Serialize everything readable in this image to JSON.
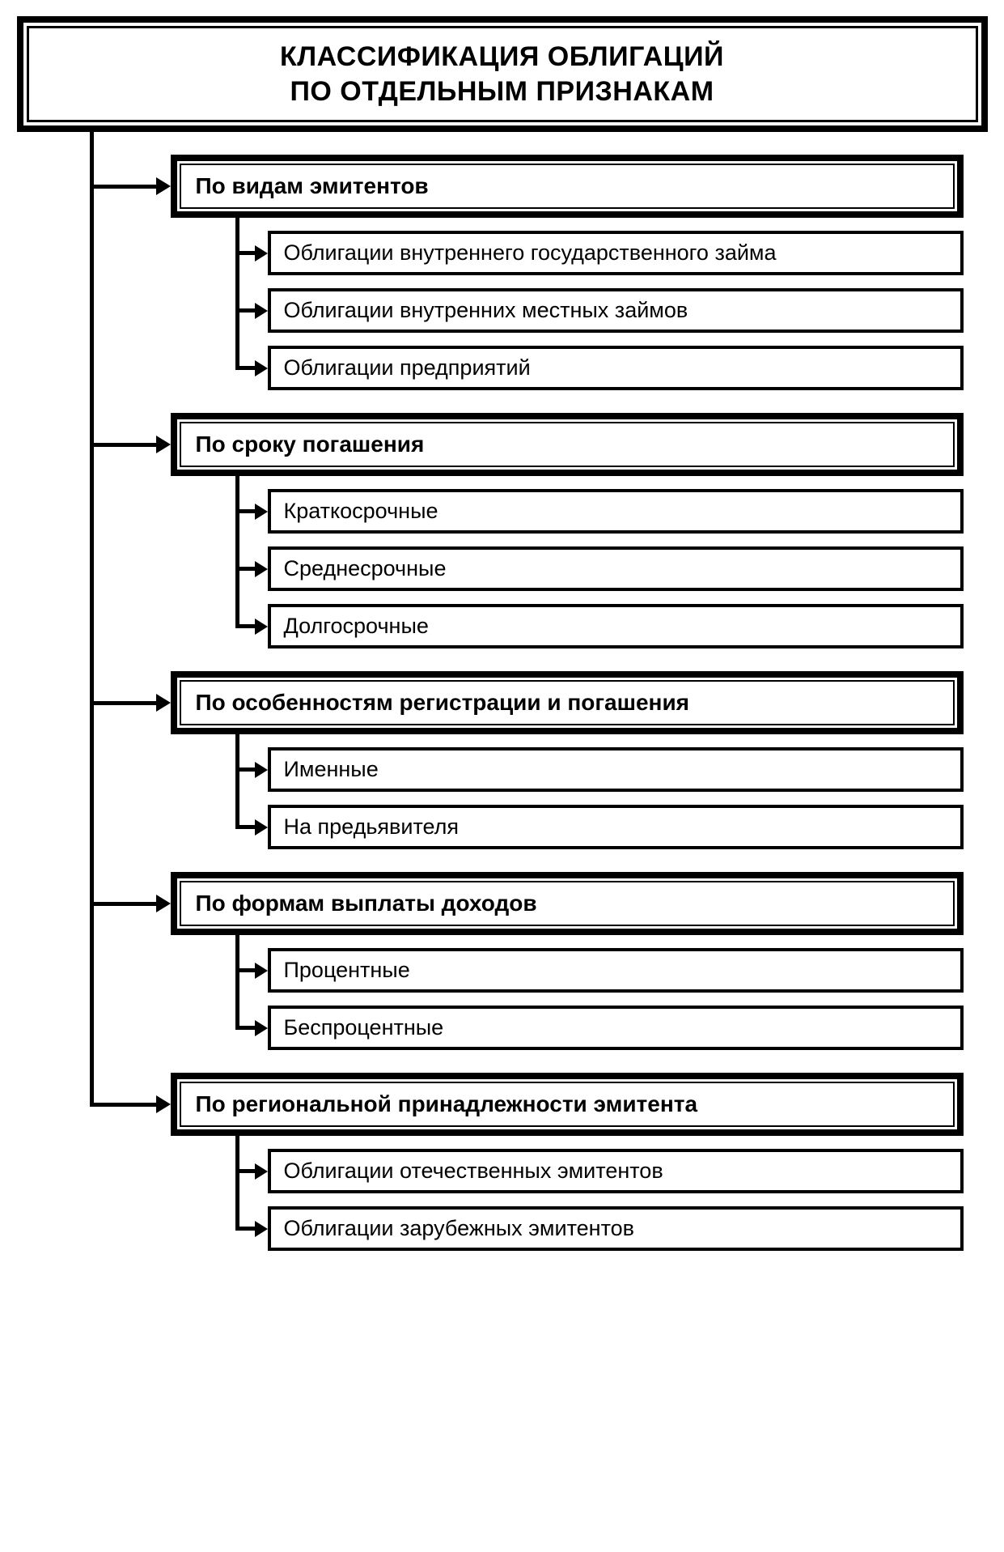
{
  "type": "tree",
  "title": {
    "line1": "КЛАССИФИКАЦИЯ ОБЛИГАЦИЙ",
    "line2": "ПО ОТДЕЛЬНЫМ ПРИЗНАКАМ",
    "fontsize": 34,
    "fontweight": 900
  },
  "colors": {
    "line": "#000000",
    "background": "#ffffff",
    "text": "#000000"
  },
  "line_width_main": 5,
  "border_title_outer": 8,
  "border_title_inner": 3,
  "border_cat_outer": 8,
  "border_cat_inner": 2,
  "border_item": 4,
  "categories": [
    {
      "label": "По видам эмитентов",
      "items": [
        "Облигации внутреннего государственного займа",
        "Облигации внутренних местных займов",
        "Облигации предприятий"
      ]
    },
    {
      "label": "По сроку погашения",
      "items": [
        "Краткосрочные",
        "Среднесрочные",
        "Долгосрочные"
      ]
    },
    {
      "label": "По особенностям регистрации и погашения",
      "items": [
        "Именные",
        "На предьявителя"
      ]
    },
    {
      "label": "По формам выплаты доходов",
      "items": [
        "Процентные",
        "Беспроцентные"
      ]
    },
    {
      "label": "По региональной принадлежности эмитента",
      "items": [
        "Облигации отечественных эмитентов",
        "Облигации зарубежных эмитентов"
      ]
    }
  ]
}
